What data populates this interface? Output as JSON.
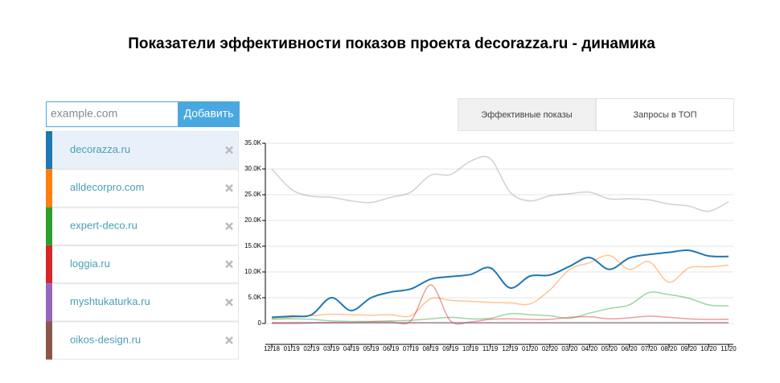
{
  "header": {
    "title": "Показатели эффективности показов проекта decorazza.ru - динамика"
  },
  "input": {
    "placeholder": "example.com",
    "button": "Добавить"
  },
  "tabs": [
    "Эффективные показы",
    "Запросы в ТОП"
  ],
  "active_tab": 0,
  "chart_data": {
    "type": "line",
    "categories": [
      "12/18",
      "01/19",
      "02/19",
      "03/19",
      "04/19",
      "05/19",
      "06/19",
      "07/19",
      "08/19",
      "09/19",
      "10/19",
      "11/19",
      "12/19",
      "01/20",
      "02/20",
      "03/20",
      "04/20",
      "05/20",
      "06/20",
      "07/20",
      "08/20",
      "09/20",
      "10/20",
      "11/20"
    ],
    "selected": 0,
    "series": [
      {
        "name": "decorazza.ru",
        "color": "#1f77b4",
        "values": [
          1200,
          1400,
          1700,
          5000,
          2500,
          5000,
          6100,
          6700,
          8600,
          9100,
          9500,
          10800,
          6900,
          9200,
          9400,
          11100,
          12800,
          10500,
          12700,
          13400,
          13800,
          14200,
          13100,
          13000
        ]
      },
      {
        "name": "alldecorpro.com",
        "color": "#ff7f0e",
        "values": [
          1000,
          1200,
          1500,
          1800,
          1700,
          1600,
          1700,
          1500,
          4800,
          4500,
          4300,
          4100,
          4000,
          3800,
          6500,
          10500,
          11800,
          13200,
          10500,
          12000,
          8000,
          10800,
          11000,
          11300
        ]
      },
      {
        "name": "expert-deco.ru",
        "color": "#2ca02c",
        "values": [
          800,
          900,
          800,
          500,
          400,
          400,
          500,
          600,
          900,
          1200,
          900,
          1000,
          1900,
          1700,
          1500,
          1000,
          2000,
          2900,
          3600,
          6000,
          5600,
          4900,
          3600,
          3400
        ]
      },
      {
        "name": "loggia.ru",
        "color": "#d62728",
        "values": [
          0,
          0,
          100,
          200,
          200,
          300,
          300,
          500,
          7500,
          500,
          300,
          800,
          900,
          800,
          800,
          1200,
          1300,
          900,
          1100,
          1400,
          1200,
          900,
          800,
          800
        ]
      },
      {
        "name": "myshtukaturka.ru",
        "color": "#9467bd",
        "values": [
          200,
          200,
          200,
          200,
          200,
          200,
          200,
          200,
          200,
          200,
          200,
          200,
          200,
          200,
          200,
          200,
          200,
          200,
          200,
          200,
          200,
          200,
          200,
          200
        ]
      },
      {
        "name": "oikos-design.ru",
        "color": "#8c564b",
        "values": [
          100,
          100,
          100,
          100,
          100,
          100,
          100,
          100,
          100,
          100,
          100,
          100,
          100,
          100,
          100,
          100,
          100,
          100,
          100,
          100,
          100,
          100,
          100,
          100
        ]
      },
      {
        "color": "#999999",
        "values": [
          30000,
          26000,
          24700,
          24500,
          23800,
          23500,
          24500,
          25500,
          28800,
          28900,
          31500,
          32000,
          25500,
          23800,
          24800,
          25200,
          25500,
          24200,
          24200,
          24000,
          23200,
          22800,
          21800,
          23600
        ]
      }
    ],
    "ylim": [
      0,
      35000
    ],
    "yticks": [
      0,
      {
        "value": 5000,
        "label": "5.0K"
      },
      {
        "value": 10000,
        "label": "10.0K"
      },
      {
        "value": 15000,
        "label": "15.0K"
      },
      {
        "value": 20000,
        "label": "20.0K"
      },
      {
        "value": 25000,
        "label": "25.0K"
      },
      {
        "value": 30000,
        "label": "30.0K"
      },
      {
        "value": 35000,
        "label": "35.0K"
      }
    ],
    "grid": true
  }
}
